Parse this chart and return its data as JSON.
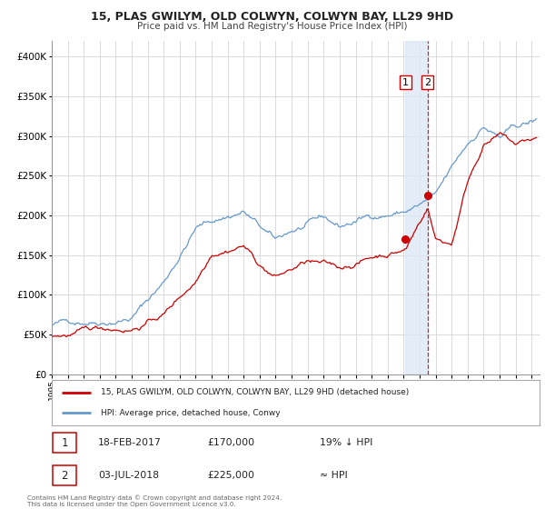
{
  "title": "15, PLAS GWILYM, OLD COLWYN, COLWYN BAY, LL29 9HD",
  "subtitle": "Price paid vs. HM Land Registry's House Price Index (HPI)",
  "red_legend": "15, PLAS GWILYM, OLD COLWYN, COLWYN BAY, LL29 9HD (detached house)",
  "blue_legend": "HPI: Average price, detached house, Conwy",
  "transaction1_date": "18-FEB-2017",
  "transaction1_price": "£170,000",
  "transaction1_hpi": "19% ↓ HPI",
  "transaction2_date": "03-JUL-2018",
  "transaction2_price": "£225,000",
  "transaction2_hpi": "≈ HPI",
  "footer": "Contains HM Land Registry data © Crown copyright and database right 2024.\nThis data is licensed under the Open Government Licence v3.0.",
  "red_color": "#cc0000",
  "blue_color": "#6699cc",
  "span_color": "#dce8f5",
  "background_color": "#ffffff",
  "grid_color": "#cccccc",
  "transaction1_x": 2017.12,
  "transaction2_x": 2018.5,
  "transaction1_y": 170000,
  "transaction2_y": 225000,
  "ylim": [
    0,
    420000
  ],
  "xlim": [
    1995.0,
    2025.5
  ],
  "yticks": [
    0,
    50000,
    100000,
    150000,
    200000,
    250000,
    300000,
    350000,
    400000
  ],
  "xticks": [
    1995,
    1996,
    1997,
    1998,
    1999,
    2000,
    2001,
    2002,
    2003,
    2004,
    2005,
    2006,
    2007,
    2008,
    2009,
    2010,
    2011,
    2012,
    2013,
    2014,
    2015,
    2016,
    2017,
    2018,
    2019,
    2020,
    2021,
    2022,
    2023,
    2024,
    2025
  ]
}
